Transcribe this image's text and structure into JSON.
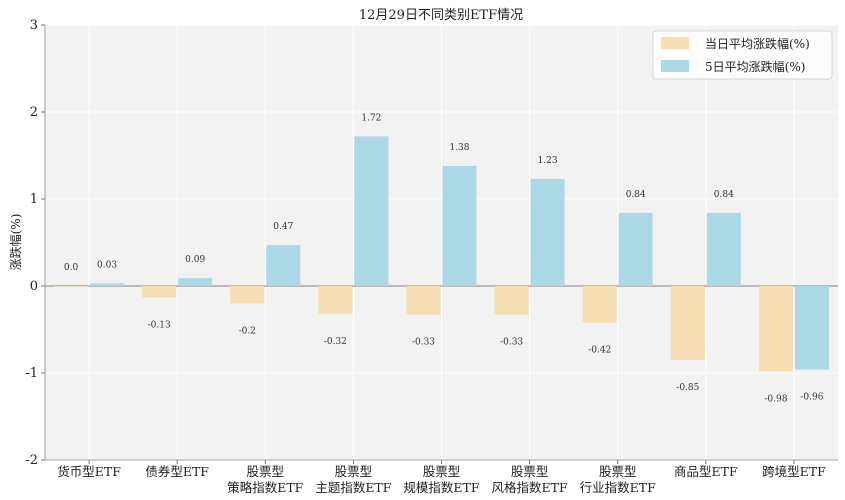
{
  "chart_data": {
    "type": "bar",
    "title": "12月29日不同类别ETF情况",
    "xlabel": "",
    "ylabel": "涨跌幅(%)",
    "ylim": [
      -2,
      3
    ],
    "yticks": [
      "-2",
      "-1",
      "0",
      "1",
      "2",
      "3"
    ],
    "ytick_values": [
      -2,
      -1,
      0,
      1,
      2,
      3
    ],
    "categories": [
      [
        "货币型ETF"
      ],
      [
        "债券型ETF"
      ],
      [
        "股票型",
        "策略指数ETF"
      ],
      [
        "股票型",
        "主题指数ETF"
      ],
      [
        "股票型",
        "规模指数ETF"
      ],
      [
        "股票型",
        "风格指数ETF"
      ],
      [
        "股票型",
        "行业指数ETF"
      ],
      [
        "商品型ETF"
      ],
      [
        "跨境型ETF"
      ]
    ],
    "series": [
      {
        "name": "当日平均涨跌幅(%)",
        "color": "#f5deb3",
        "values": [
          0.0,
          -0.13,
          -0.2,
          -0.32,
          -0.33,
          -0.33,
          -0.42,
          -0.85,
          -0.98
        ],
        "labels": [
          "0.0",
          "-0.13",
          "-0.2",
          "-0.32",
          "-0.33",
          "-0.33",
          "-0.42",
          "-0.85",
          "-0.98"
        ]
      },
      {
        "name": "5日平均涨跌幅(%)",
        "color": "#add8e6",
        "values": [
          0.03,
          0.09,
          0.47,
          1.72,
          1.38,
          1.23,
          0.84,
          0.84,
          -0.96
        ],
        "labels": [
          "0.03",
          "0.09",
          "0.47",
          "1.72",
          "1.38",
          "1.23",
          "0.84",
          "0.84",
          "-0.96"
        ]
      }
    ],
    "grid": true,
    "legend_position": "top-right"
  }
}
